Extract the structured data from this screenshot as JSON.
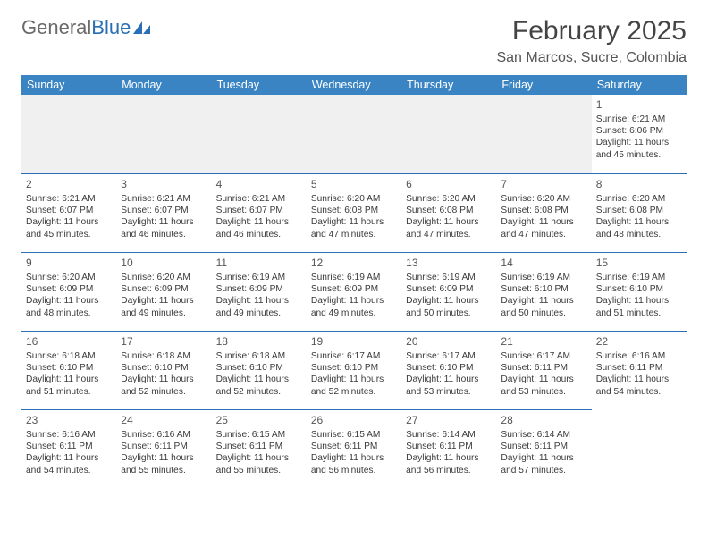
{
  "logo": {
    "text_gray": "General",
    "text_blue": "Blue"
  },
  "header": {
    "month_title": "February 2025",
    "location": "San Marcos, Sucre, Colombia"
  },
  "colors": {
    "header_bar": "#3b84c4",
    "rule": "#2a6fb5",
    "blank_bg": "#f0f0f0",
    "text": "#3a3a3a"
  },
  "weekdays": [
    "Sunday",
    "Monday",
    "Tuesday",
    "Wednesday",
    "Thursday",
    "Friday",
    "Saturday"
  ],
  "leading_blanks": 6,
  "days": [
    {
      "n": "1",
      "sunrise": "Sunrise: 6:21 AM",
      "sunset": "Sunset: 6:06 PM",
      "daylight_l1": "Daylight: 11 hours",
      "daylight_l2": "and 45 minutes."
    },
    {
      "n": "2",
      "sunrise": "Sunrise: 6:21 AM",
      "sunset": "Sunset: 6:07 PM",
      "daylight_l1": "Daylight: 11 hours",
      "daylight_l2": "and 45 minutes."
    },
    {
      "n": "3",
      "sunrise": "Sunrise: 6:21 AM",
      "sunset": "Sunset: 6:07 PM",
      "daylight_l1": "Daylight: 11 hours",
      "daylight_l2": "and 46 minutes."
    },
    {
      "n": "4",
      "sunrise": "Sunrise: 6:21 AM",
      "sunset": "Sunset: 6:07 PM",
      "daylight_l1": "Daylight: 11 hours",
      "daylight_l2": "and 46 minutes."
    },
    {
      "n": "5",
      "sunrise": "Sunrise: 6:20 AM",
      "sunset": "Sunset: 6:08 PM",
      "daylight_l1": "Daylight: 11 hours",
      "daylight_l2": "and 47 minutes."
    },
    {
      "n": "6",
      "sunrise": "Sunrise: 6:20 AM",
      "sunset": "Sunset: 6:08 PM",
      "daylight_l1": "Daylight: 11 hours",
      "daylight_l2": "and 47 minutes."
    },
    {
      "n": "7",
      "sunrise": "Sunrise: 6:20 AM",
      "sunset": "Sunset: 6:08 PM",
      "daylight_l1": "Daylight: 11 hours",
      "daylight_l2": "and 47 minutes."
    },
    {
      "n": "8",
      "sunrise": "Sunrise: 6:20 AM",
      "sunset": "Sunset: 6:08 PM",
      "daylight_l1": "Daylight: 11 hours",
      "daylight_l2": "and 48 minutes."
    },
    {
      "n": "9",
      "sunrise": "Sunrise: 6:20 AM",
      "sunset": "Sunset: 6:09 PM",
      "daylight_l1": "Daylight: 11 hours",
      "daylight_l2": "and 48 minutes."
    },
    {
      "n": "10",
      "sunrise": "Sunrise: 6:20 AM",
      "sunset": "Sunset: 6:09 PM",
      "daylight_l1": "Daylight: 11 hours",
      "daylight_l2": "and 49 minutes."
    },
    {
      "n": "11",
      "sunrise": "Sunrise: 6:19 AM",
      "sunset": "Sunset: 6:09 PM",
      "daylight_l1": "Daylight: 11 hours",
      "daylight_l2": "and 49 minutes."
    },
    {
      "n": "12",
      "sunrise": "Sunrise: 6:19 AM",
      "sunset": "Sunset: 6:09 PM",
      "daylight_l1": "Daylight: 11 hours",
      "daylight_l2": "and 49 minutes."
    },
    {
      "n": "13",
      "sunrise": "Sunrise: 6:19 AM",
      "sunset": "Sunset: 6:09 PM",
      "daylight_l1": "Daylight: 11 hours",
      "daylight_l2": "and 50 minutes."
    },
    {
      "n": "14",
      "sunrise": "Sunrise: 6:19 AM",
      "sunset": "Sunset: 6:10 PM",
      "daylight_l1": "Daylight: 11 hours",
      "daylight_l2": "and 50 minutes."
    },
    {
      "n": "15",
      "sunrise": "Sunrise: 6:19 AM",
      "sunset": "Sunset: 6:10 PM",
      "daylight_l1": "Daylight: 11 hours",
      "daylight_l2": "and 51 minutes."
    },
    {
      "n": "16",
      "sunrise": "Sunrise: 6:18 AM",
      "sunset": "Sunset: 6:10 PM",
      "daylight_l1": "Daylight: 11 hours",
      "daylight_l2": "and 51 minutes."
    },
    {
      "n": "17",
      "sunrise": "Sunrise: 6:18 AM",
      "sunset": "Sunset: 6:10 PM",
      "daylight_l1": "Daylight: 11 hours",
      "daylight_l2": "and 52 minutes."
    },
    {
      "n": "18",
      "sunrise": "Sunrise: 6:18 AM",
      "sunset": "Sunset: 6:10 PM",
      "daylight_l1": "Daylight: 11 hours",
      "daylight_l2": "and 52 minutes."
    },
    {
      "n": "19",
      "sunrise": "Sunrise: 6:17 AM",
      "sunset": "Sunset: 6:10 PM",
      "daylight_l1": "Daylight: 11 hours",
      "daylight_l2": "and 52 minutes."
    },
    {
      "n": "20",
      "sunrise": "Sunrise: 6:17 AM",
      "sunset": "Sunset: 6:10 PM",
      "daylight_l1": "Daylight: 11 hours",
      "daylight_l2": "and 53 minutes."
    },
    {
      "n": "21",
      "sunrise": "Sunrise: 6:17 AM",
      "sunset": "Sunset: 6:11 PM",
      "daylight_l1": "Daylight: 11 hours",
      "daylight_l2": "and 53 minutes."
    },
    {
      "n": "22",
      "sunrise": "Sunrise: 6:16 AM",
      "sunset": "Sunset: 6:11 PM",
      "daylight_l1": "Daylight: 11 hours",
      "daylight_l2": "and 54 minutes."
    },
    {
      "n": "23",
      "sunrise": "Sunrise: 6:16 AM",
      "sunset": "Sunset: 6:11 PM",
      "daylight_l1": "Daylight: 11 hours",
      "daylight_l2": "and 54 minutes."
    },
    {
      "n": "24",
      "sunrise": "Sunrise: 6:16 AM",
      "sunset": "Sunset: 6:11 PM",
      "daylight_l1": "Daylight: 11 hours",
      "daylight_l2": "and 55 minutes."
    },
    {
      "n": "25",
      "sunrise": "Sunrise: 6:15 AM",
      "sunset": "Sunset: 6:11 PM",
      "daylight_l1": "Daylight: 11 hours",
      "daylight_l2": "and 55 minutes."
    },
    {
      "n": "26",
      "sunrise": "Sunrise: 6:15 AM",
      "sunset": "Sunset: 6:11 PM",
      "daylight_l1": "Daylight: 11 hours",
      "daylight_l2": "and 56 minutes."
    },
    {
      "n": "27",
      "sunrise": "Sunrise: 6:14 AM",
      "sunset": "Sunset: 6:11 PM",
      "daylight_l1": "Daylight: 11 hours",
      "daylight_l2": "and 56 minutes."
    },
    {
      "n": "28",
      "sunrise": "Sunrise: 6:14 AM",
      "sunset": "Sunset: 6:11 PM",
      "daylight_l1": "Daylight: 11 hours",
      "daylight_l2": "and 57 minutes."
    }
  ]
}
